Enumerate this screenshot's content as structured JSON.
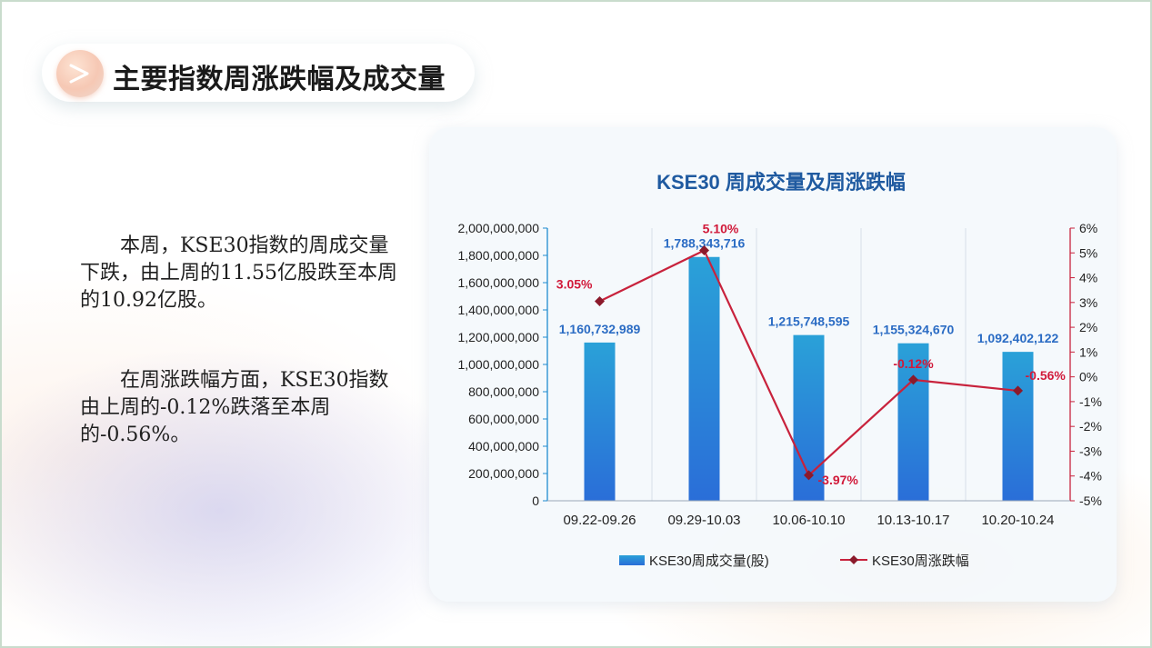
{
  "page": {
    "title": "主要指数周涨跌幅及成交量",
    "paragraph1": "本周，KSE30指数的周成交量下跌，由上周的11.55亿股跌至本周的10.92亿股。",
    "paragraph2": "在周涨跌幅方面，KSE30指数由上周的-0.12%跌落至本周的-0.56%。"
  },
  "colors": {
    "bar_top": "#2aa1d8",
    "bar_bottom": "#2a6ed8",
    "line": "#c8223c",
    "marker": "#8b1a2b",
    "bar_label": "#2b6cc4",
    "line_label": "#d11a3a",
    "chart_title": "#1f5aa0",
    "left_axis": "#1f8ccf",
    "right_axis": "#c8223c"
  },
  "chart_data": {
    "type": "bar+line",
    "title": "KSE30 周成交量及周涨跌幅",
    "categories": [
      "09.22-09.26",
      "09.29-10.03",
      "10.06-10.10",
      "10.13-10.17",
      "10.20-10.24"
    ],
    "series": [
      {
        "name": "KSE30周成交量(股)",
        "type": "bar",
        "axis": "left",
        "values": [
          1160732989,
          1788343716,
          1215748595,
          1155324670,
          1092402122
        ],
        "labels": [
          "1,160,732,989",
          "1,788,343,716",
          "1,215,748,595",
          "1,155,324,670",
          "1,092,402,122"
        ]
      },
      {
        "name": "KSE30周涨跌幅",
        "type": "line",
        "axis": "right",
        "values": [
          3.05,
          5.1,
          -3.97,
          -0.12,
          -0.56
        ],
        "labels": [
          "3.05%",
          "5.10%",
          "-3.97%",
          "-0.12%",
          "-0.56%"
        ]
      }
    ],
    "y_left": {
      "ylim": [
        0,
        2000000000
      ],
      "ticks": [
        "0",
        "200,000,000",
        "400,000,000",
        "600,000,000",
        "800,000,000",
        "1,000,000,000",
        "1,200,000,000",
        "1,400,000,000",
        "1,600,000,000",
        "1,800,000,000",
        "2,000,000,000"
      ]
    },
    "y_right": {
      "ylim": [
        -5,
        6
      ],
      "ticks": [
        "-5%",
        "-4%",
        "-3%",
        "-2%",
        "-1%",
        "0%",
        "1%",
        "2%",
        "3%",
        "4%",
        "5%",
        "6%"
      ]
    },
    "grid": "vertical",
    "legend": "bottom-center"
  }
}
